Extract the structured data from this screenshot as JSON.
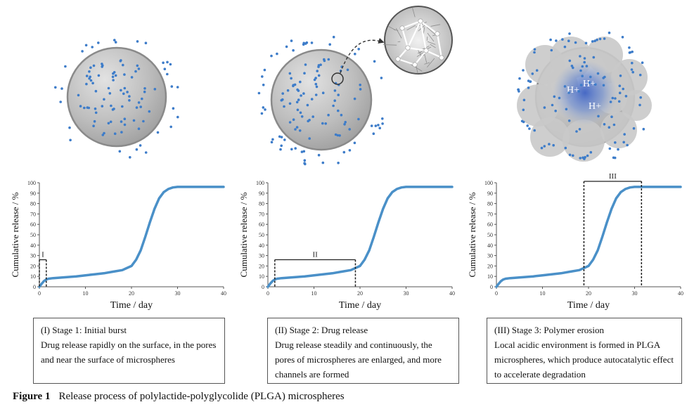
{
  "figure": {
    "caption_label": "Figure 1",
    "caption_text": "Release process of polylactide-polyglycolide (PLGA) microspheres"
  },
  "colors": {
    "curve": "#4a90c8",
    "dot": "#3d7cc9",
    "sphere_fill": "#b8b8b8",
    "sphere_edge": "#8a8a8a",
    "erosion": "#c9c9c9",
    "acid_glow": "#4a6fc9"
  },
  "acid_labels": [
    "H+",
    "H+",
    "H+"
  ],
  "panels": [
    {
      "title": "(I) Stage 1: Initial burst",
      "desc": "Drug release rapidly on the surface, in the pores and near the surface of microspheres",
      "bracket_label": "I",
      "bracket_x": [
        0,
        1.5
      ],
      "bracket_y": 26
    },
    {
      "title": "(II) Stage 2: Drug release",
      "desc": "Drug release steadily and continuously, the pores of microspheres are enlarged, and more channels are formed",
      "bracket_label": "II",
      "bracket_x": [
        1.5,
        19
      ],
      "bracket_y": 26
    },
    {
      "title": "(III) Stage 3: Polymer erosion",
      "desc": "Local acidic environment is formed in PLGA microspheres, which produce autocatalytic effect to accelerate degradation",
      "bracket_label": "III",
      "bracket_x": [
        19,
        31.5
      ],
      "bracket_y": 100
    }
  ],
  "chart_data": [
    {
      "type": "line",
      "xlabel": "Time / day",
      "ylabel": "Cumulative release / %",
      "xlim": [
        0,
        40
      ],
      "ylim": [
        0,
        100
      ],
      "x_ticks": [
        0,
        10,
        20,
        30,
        40
      ],
      "y_ticks": [
        0,
        10,
        20,
        30,
        40,
        50,
        60,
        70,
        80,
        90,
        100
      ],
      "series": [
        {
          "x": [
            0,
            0.5,
            1,
            1.5,
            2,
            3,
            5,
            8,
            10,
            12,
            14,
            16,
            18,
            20,
            21,
            22,
            23,
            24,
            25,
            26,
            27,
            28,
            29,
            30,
            32,
            35,
            40
          ],
          "y": [
            0,
            3,
            5.5,
            7,
            7.8,
            8.3,
            9,
            10,
            11,
            12,
            13,
            14.5,
            16,
            20,
            26,
            35,
            48,
            62,
            75,
            85,
            91,
            94,
            95.5,
            96,
            96,
            96,
            96
          ]
        }
      ]
    },
    {
      "type": "line",
      "xlabel": "Time / day",
      "ylabel": "Cumulative release / %",
      "xlim": [
        0,
        40
      ],
      "ylim": [
        0,
        100
      ],
      "x_ticks": [
        0,
        10,
        20,
        30,
        40
      ],
      "y_ticks": [
        0,
        10,
        20,
        30,
        40,
        50,
        60,
        70,
        80,
        90,
        100
      ],
      "series": [
        {
          "x": [
            0,
            0.5,
            1,
            1.5,
            2,
            3,
            5,
            8,
            10,
            12,
            14,
            16,
            18,
            20,
            21,
            22,
            23,
            24,
            25,
            26,
            27,
            28,
            29,
            30,
            32,
            35,
            40
          ],
          "y": [
            0,
            3,
            5.5,
            7,
            7.8,
            8.3,
            9,
            10,
            11,
            12,
            13,
            14.5,
            16,
            20,
            26,
            35,
            48,
            62,
            75,
            85,
            91,
            94,
            95.5,
            96,
            96,
            96,
            96
          ]
        }
      ]
    },
    {
      "type": "line",
      "xlabel": "Time / day",
      "ylabel": "Cumulative release / %",
      "xlim": [
        0,
        40
      ],
      "ylim": [
        0,
        100
      ],
      "x_ticks": [
        0,
        10,
        20,
        30,
        40
      ],
      "y_ticks": [
        0,
        10,
        20,
        30,
        40,
        50,
        60,
        70,
        80,
        90,
        100
      ],
      "series": [
        {
          "x": [
            0,
            0.5,
            1,
            1.5,
            2,
            3,
            5,
            8,
            10,
            12,
            14,
            16,
            18,
            20,
            21,
            22,
            23,
            24,
            25,
            26,
            27,
            28,
            29,
            30,
            32,
            35,
            40
          ],
          "y": [
            0,
            3,
            5.5,
            7,
            7.8,
            8.3,
            9,
            10,
            11,
            12,
            13,
            14.5,
            16,
            20,
            26,
            35,
            48,
            62,
            75,
            85,
            91,
            94,
            95.5,
            96,
            96,
            96,
            96
          ]
        }
      ]
    }
  ]
}
